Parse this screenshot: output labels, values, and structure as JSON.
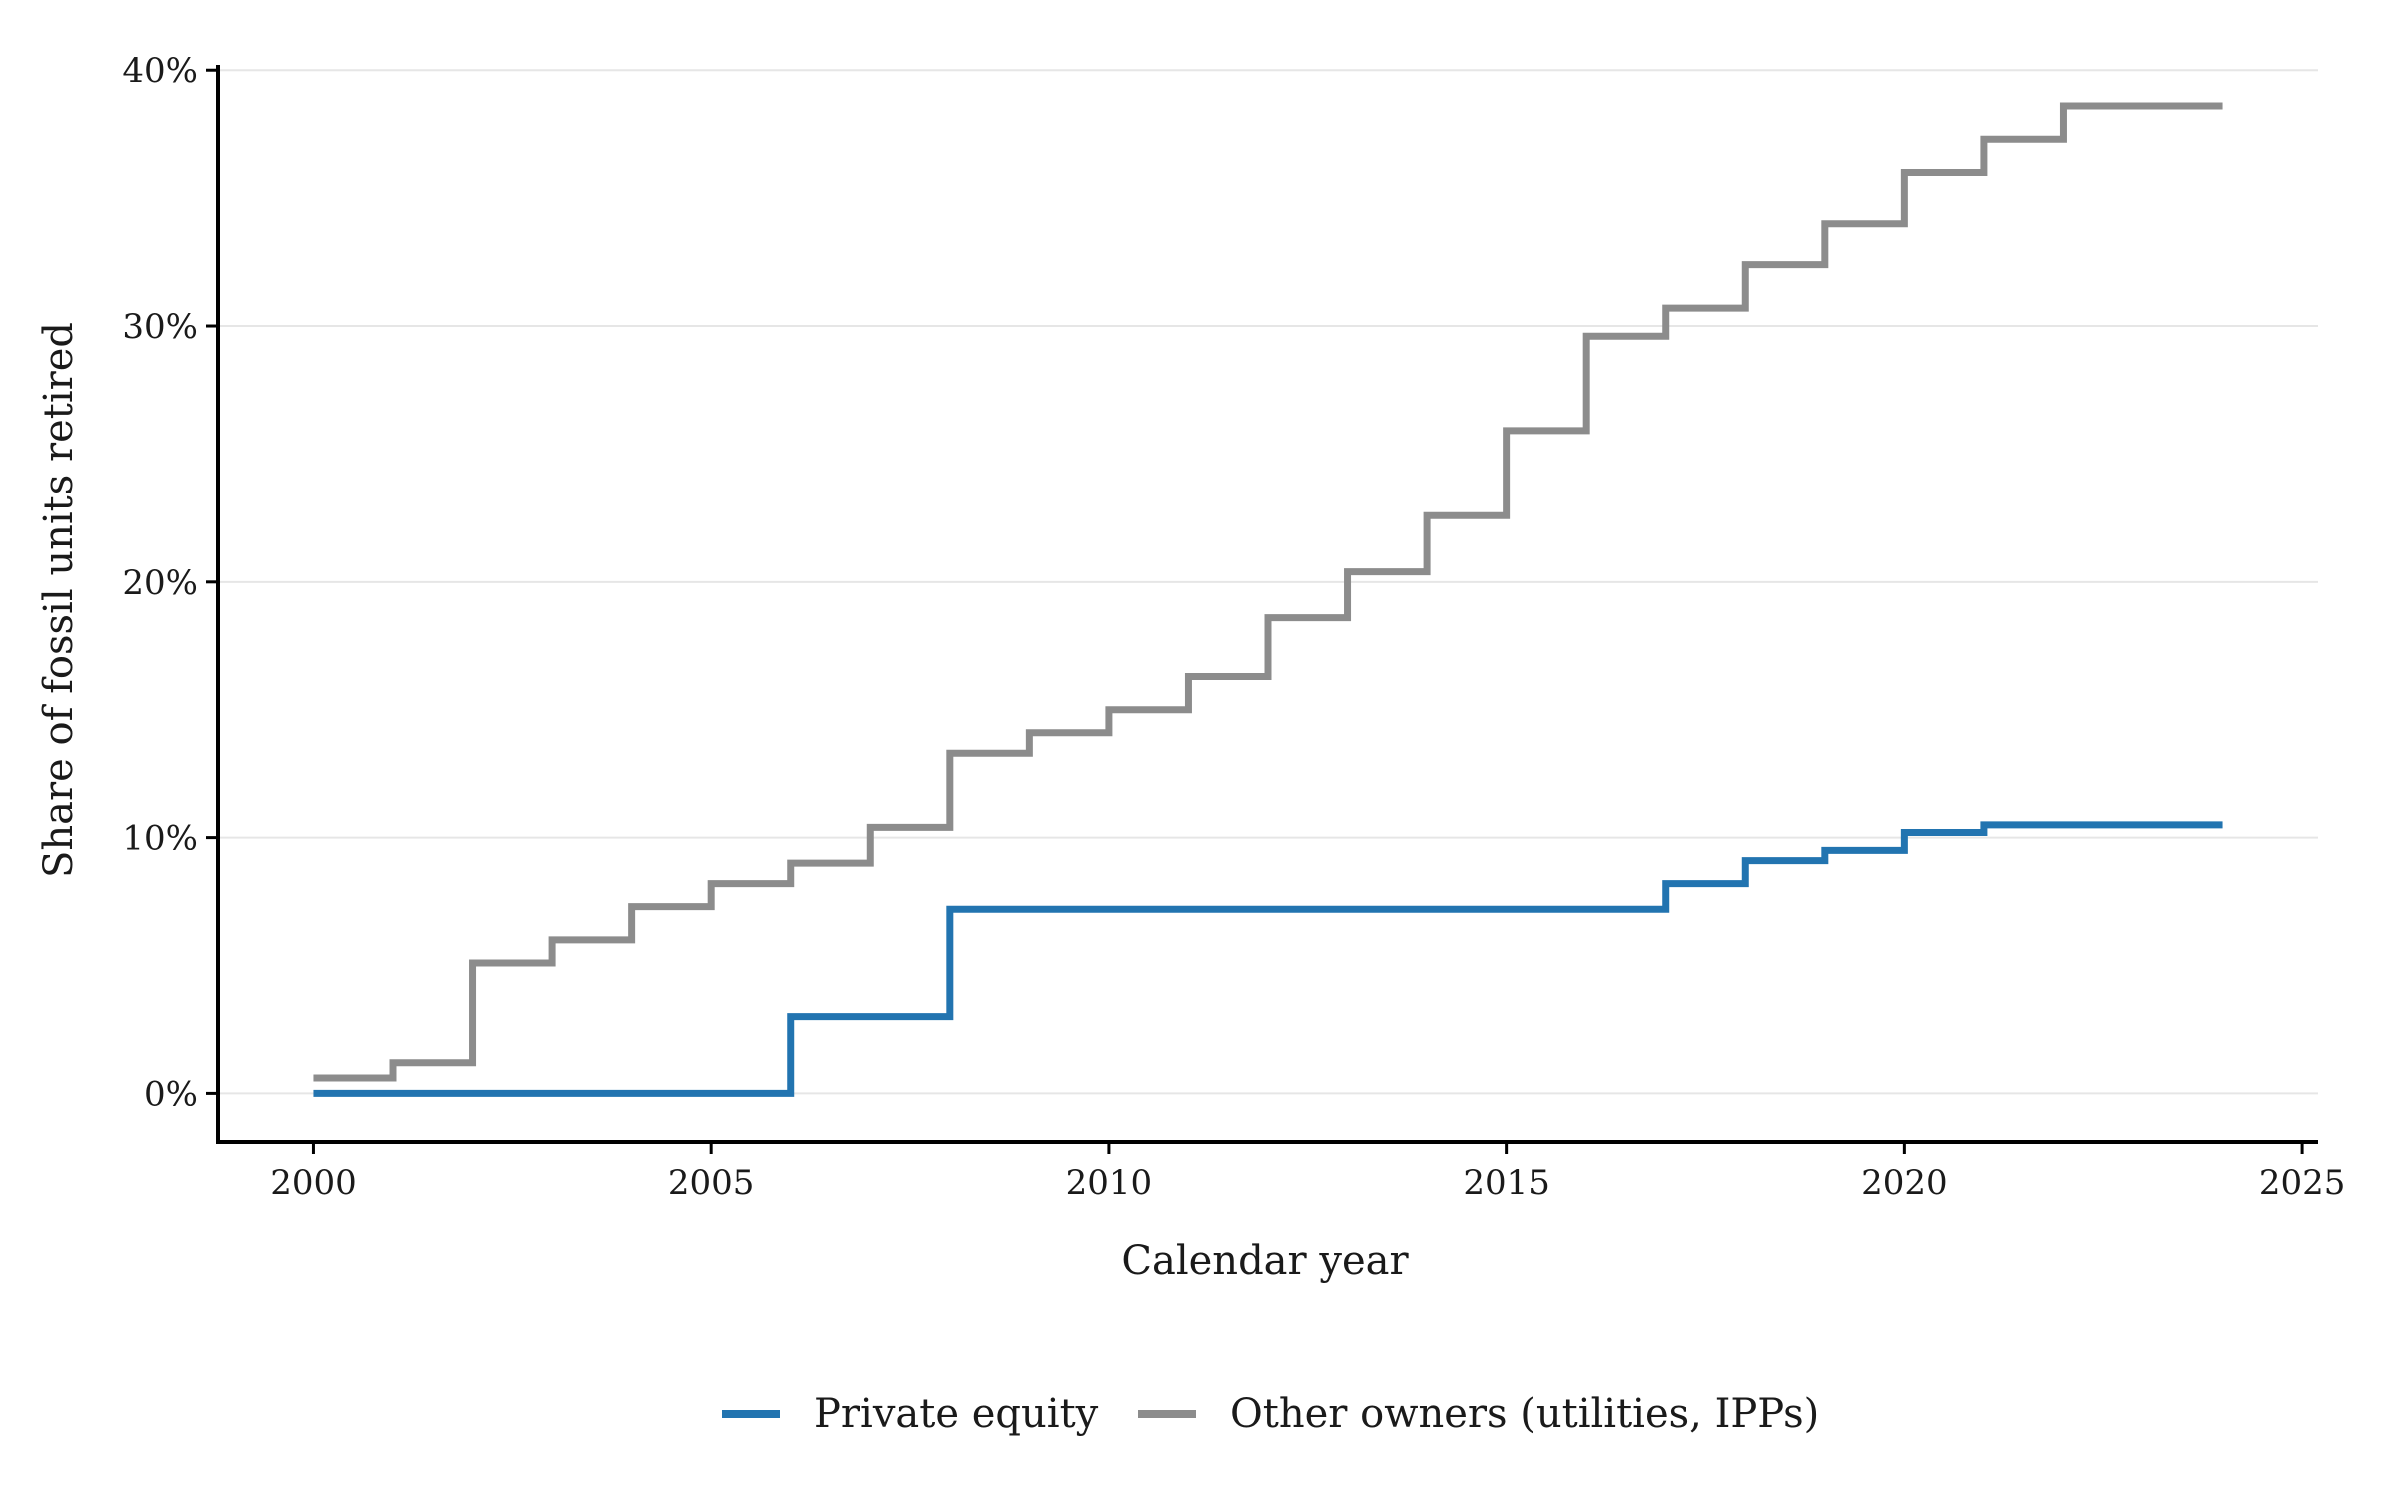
{
  "chart_data": {
    "type": "line",
    "step": true,
    "title": "",
    "xlabel": "Calendar year",
    "ylabel": "Share of fossil units retired",
    "xlim": [
      1998.8,
      2025.2
    ],
    "ylim": [
      -1.9,
      40.4
    ],
    "x_ticks": [
      2000,
      2005,
      2010,
      2015,
      2020,
      2025
    ],
    "x_tick_labels": [
      "2000",
      "2005",
      "2010",
      "2015",
      "2020",
      "2025"
    ],
    "y_ticks": [
      0,
      10,
      20,
      30,
      40
    ],
    "y_tick_labels": [
      "0%",
      "10%",
      "20%",
      "30%",
      "40%"
    ],
    "grid": "horizontal",
    "legend_position": "bottom",
    "series": [
      {
        "name": "Private equity",
        "color": "#2274b0",
        "x": [
          2000,
          2001,
          2002,
          2003,
          2004,
          2005,
          2006,
          2007,
          2008,
          2009,
          2010,
          2011,
          2012,
          2013,
          2014,
          2015,
          2016,
          2017,
          2018,
          2019,
          2020,
          2021,
          2022,
          2023,
          2024
        ],
        "y": [
          0,
          0,
          0,
          0,
          0,
          0,
          3.0,
          3.0,
          7.2,
          7.2,
          7.2,
          7.2,
          7.2,
          7.2,
          7.2,
          7.2,
          7.2,
          8.2,
          9.1,
          9.5,
          10.2,
          10.5,
          10.5,
          10.5,
          10.5
        ]
      },
      {
        "name": "Other owners (utilities, IPPs)",
        "color": "#8c8c8c",
        "x": [
          2000,
          2001,
          2002,
          2003,
          2004,
          2005,
          2006,
          2007,
          2008,
          2009,
          2010,
          2011,
          2012,
          2013,
          2014,
          2015,
          2016,
          2017,
          2018,
          2019,
          2020,
          2021,
          2022,
          2023,
          2024
        ],
        "y": [
          0.6,
          1.2,
          5.1,
          6.0,
          7.3,
          8.2,
          9.0,
          10.4,
          13.3,
          14.1,
          15.0,
          16.3,
          18.6,
          20.4,
          22.6,
          25.9,
          29.6,
          30.7,
          32.4,
          34.0,
          36.0,
          37.3,
          38.6,
          38.6,
          38.6
        ]
      }
    ]
  }
}
